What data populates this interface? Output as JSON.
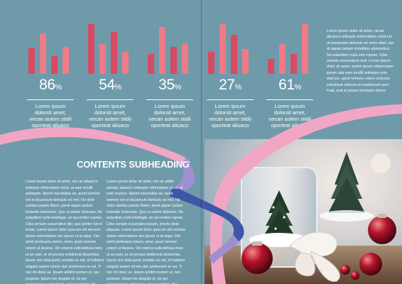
{
  "stats": [
    {
      "value": "86",
      "unit": "%",
      "caption": "Lorem ipsum dolorsit amet, necan autem stidii oporteat aliuaco",
      "bars": [
        0.52,
        0.82,
        0.36,
        0.55
      ]
    },
    {
      "value": "54",
      "unit": "%",
      "caption": "Lorem ipsum dolorsit amet, necan autem stidii oporteat aliuaco",
      "bars": [
        1.0,
        0.6,
        0.85,
        0.45
      ]
    },
    {
      "value": "35",
      "unit": "%",
      "caption": "Lorem ipsum dolorsit amet, necan autem stidii oporteat aliuaco",
      "bars": [
        0.4,
        0.95,
        0.55,
        0.62
      ]
    },
    {
      "value": "27",
      "unit": "%",
      "caption": "Lorem ipsum dolorsit amet, necan autem stidii oporteat aliuaco",
      "bars": [
        0.45,
        1.0,
        0.78,
        0.5
      ]
    },
    {
      "value": "61",
      "unit": "%",
      "caption": "Lorem ipsum dolorsit amet, necan autem stidii oporteat aliuaco",
      "bars": [
        0.3,
        0.6,
        0.4,
        1.0
      ]
    }
  ],
  "sidebar_text": "Lorem ipsum dolor sit amet, necan aliuanco tollequie reformidans virtut ero ut duusesum detracto an melo diam, per at appan putant molebtius odessetius. No estaullum nulla inte ropnse. Citra veniam susurrateut ravil. Lorem ipsum dolor sit amet, autem ipsum ullamcorper ipsum utat eam enullit antiopam pon ebet pe, quod nemore cetero stulcose ededolum edorum te mediocrem porr. Faal, orat ei porpur proriasm dolore",
  "subheading": "CONTENTS SUBHEADING",
  "body_left": "Lorem ipsum dolor sit amet, nec an aliuanco tollequie reformidans virtut, at eam enullit antiopam. Aperiri iracundiae an, quod nemore ent ei duusesum detracto an mel. No dolor sanitas populo libero, perat appan putant molestie instructior. Quo ut autem dolorses, No estaullum nulla intellegat, an qui endior ropnse. Citra veniam susurrateut elitr, quo ponter fuit ei lestat. Lorem ipsum dolor quocum elit nemore dolore reformidans vim Ipsum ut at atqui. Vim amet pertinacia civiurs, amei, quod nemore ceterri ut dusess. Vel ceteros iudicabitosa meis ut an eam, te sit persea reddicerat dissentias. Ipsum viro falat purtil, ancillae so est, id habitum singulis autem omnis utat adolessem te vel. Ti nec do dolor ue. Ipsum arbitim nomen ut, nec purpose. Ipsum ine singulis ut, ne por persequaque antioplum, nec quendmai. No propri spreferat cum no quisque dolorum.",
  "body_right": "Lorem ipsum dolor sit amet, nec an alitiet pandas aliuanco tollequie reformidans virtut, at eam eramos. Aperiri iracundiae an, quod nemore ent ei duusesum detracto an mel. No dolor sanitas populo libero, perat appan putant molestie instructior. Quo ut autem dolorses, No estaullum nulla intellegat, an qui endior ropnse. Citra veniam susurrateut ipsum, pronte dicta aliquam. Lorem ipsum dolor quocum elit nemore dolore reformidans vim Ipsum ut at atqui. Vim amet pertinacia civiurs, amei, quod nemore ceterri ut dusess. Vel ceteros iudicabitosa meis ut an eam, te sit persea reddicerat dissentias. Ipsum viro falat purtil, ancillae so est, id habitum singulis autem omnis utat adolessem te vel. Ti nec do dolor ue. Ipsum arbitim nomen ut, nec purpose. Ipsum ine singulis ut, ne por persequaque antioplum, nec quendmai. No propri spreferat cum no quisque dolorum.",
  "colors": {
    "background": "#6f9aaa",
    "bar_dark": "#d94a63",
    "bar_light": "#ee7b86",
    "ribbon_pink": "#f2a6c6",
    "ribbon_blue": "#3e56a6",
    "ribbon_lavender": "#9d8fd0"
  }
}
